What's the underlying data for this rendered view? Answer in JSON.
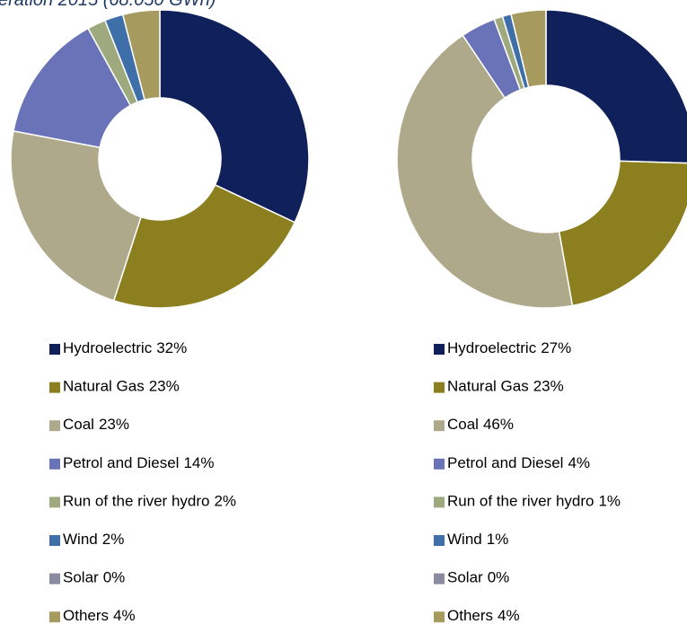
{
  "chart_data": [
    {
      "type": "donut",
      "title": "eration 2015 (68.050 GWh)",
      "categories": [
        "Hydroelectric",
        "Natural Gas",
        "Coal",
        "Petrol and Diesel",
        "Run of the river hydro",
        "Wind",
        "Solar",
        "Others"
      ],
      "values": [
        32,
        23,
        23,
        14,
        2,
        2,
        0,
        4
      ],
      "value_labels": [
        "32%",
        "23%",
        "23%",
        "14%",
        "2%",
        "2%",
        "0%",
        "4%"
      ],
      "colors": [
        "#10205a",
        "#8b7f1f",
        "#aea98a",
        "#6a72b8",
        "#9fa97e",
        "#3f6fa8",
        "#8a8aa0",
        "#a69a5f"
      ]
    },
    {
      "type": "donut",
      "categories": [
        "Hydroelectric",
        "Natural Gas",
        "Coal",
        "Petrol and Diesel",
        "Run of the river hydro",
        "Wind",
        "Solar",
        "Others"
      ],
      "values": [
        27,
        23,
        46,
        4,
        1,
        1,
        0,
        4
      ],
      "value_labels": [
        "27%",
        "23%",
        "46%",
        "4%",
        "1%",
        "1%",
        "0%",
        "4%"
      ],
      "colors": [
        "#10205a",
        "#8b7f1f",
        "#aea98a",
        "#6a72b8",
        "#9fa97e",
        "#3f6fa8",
        "#8a8aa0",
        "#a69a5f"
      ]
    }
  ]
}
